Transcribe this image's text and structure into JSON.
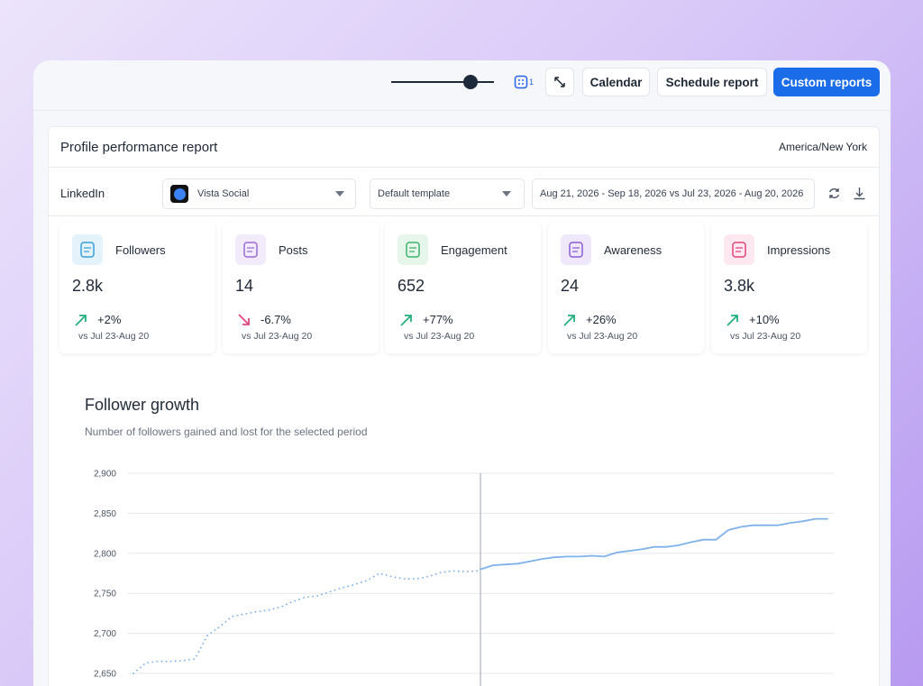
{
  "toolbar": {
    "badge": "1",
    "buttons": [
      "Calendar",
      "Schedule report",
      "Custom reports"
    ]
  },
  "report": {
    "title": "Profile performance report",
    "timezone": "America/New York",
    "network": "LinkedIn",
    "profile": "Vista Social",
    "template": "Default template",
    "date_range": "Aug 21, 2026 - Sep 18, 2026 vs Jul 23, 2026 - Aug 20, 2026"
  },
  "metrics": [
    {
      "label": "Followers",
      "value": "2.8k",
      "change": "+2%",
      "direction": "up",
      "comparison": "vs Jul 23-Aug 20"
    },
    {
      "label": "Posts",
      "value": "14",
      "change": "-6.7%",
      "direction": "down",
      "comparison": "vs Jul 23-Aug 20"
    },
    {
      "label": "Engagement",
      "value": "652",
      "change": "+77%",
      "direction": "up",
      "comparison": "vs Jul 23-Aug 20"
    },
    {
      "label": "Awareness",
      "value": "24",
      "change": "+26%",
      "direction": "up",
      "comparison": "vs Jul 23-Aug 20"
    },
    {
      "label": "Impressions",
      "value": "3.8k",
      "change": "+10%",
      "direction": "up",
      "comparison": "vs Jul 23-Aug 20"
    }
  ],
  "chart_data": {
    "type": "line",
    "title": "Follower growth",
    "subtitle": "Number of followers gained and lost for the selected period",
    "ylim": [
      2650,
      2900
    ],
    "yticks": [
      {
        "value": 2650,
        "label": "2,650"
      },
      {
        "value": 2700,
        "label": "2,700"
      },
      {
        "value": 2750,
        "label": "2,750"
      },
      {
        "value": 2800,
        "label": "2,800"
      },
      {
        "value": 2850,
        "label": "2,850"
      },
      {
        "value": 2900,
        "label": "2,900"
      }
    ],
    "grid": true,
    "series": [
      {
        "color": "#7fb2ea",
        "style": "dotted",
        "values": [
          2650,
          2663,
          2665,
          2665,
          2666,
          2668,
          2697,
          2708,
          2721,
          2724,
          2727,
          2729,
          2733,
          2740,
          2745,
          2747,
          2752,
          2757,
          2761,
          2766,
          2775,
          2771,
          2768,
          2768,
          2771,
          2776,
          2778,
          2777,
          2778
        ]
      },
      {
        "color": "#7fb2ea",
        "style": "solid",
        "values": [
          2780,
          2785,
          2786,
          2787,
          2790,
          2793,
          2795,
          2796,
          2796,
          2797,
          2796,
          2801,
          2803,
          2805,
          2808,
          2808,
          2810,
          2814,
          2817,
          2817,
          2829,
          2833,
          2835,
          2835,
          2835,
          2838,
          2840,
          2843,
          2843
        ]
      }
    ]
  }
}
